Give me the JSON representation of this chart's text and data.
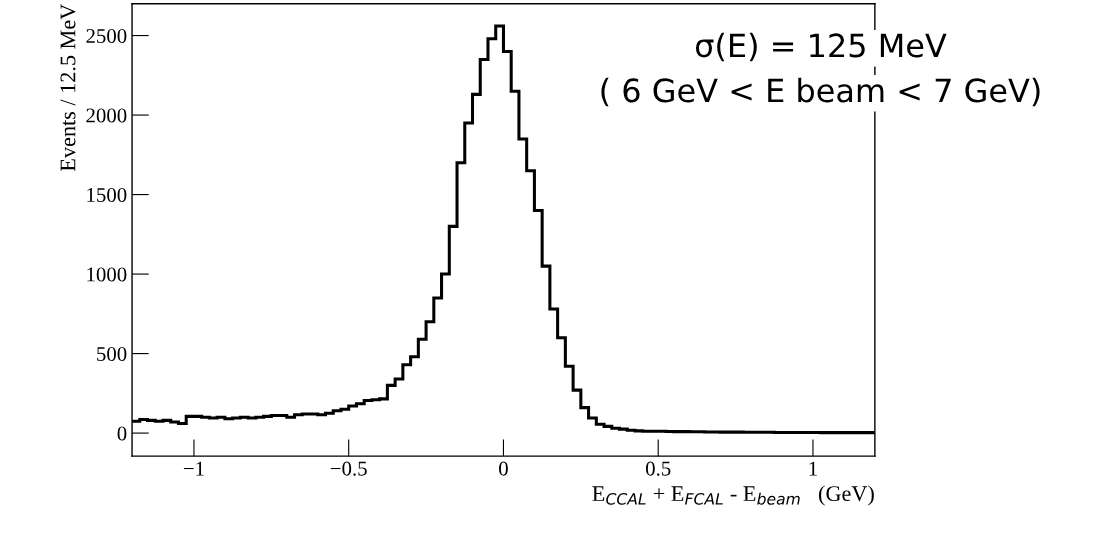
{
  "chart_data": {
    "type": "histogram",
    "xlabel": "E$_{CCAL}$ + E$_{FCAL}$ - E$_{beam}$   (GeV)",
    "ylabel": "Events / 12.5 MeV",
    "annotations": [
      "σ(E) = 125 MeV",
      "( 6 GeV < E beam < 7 GeV)"
    ],
    "color": "#000000",
    "bins": [
      -1.2,
      -1.175,
      -1.15,
      -1.125,
      -1.1,
      -1.075,
      -1.05,
      -1.025,
      -1.0,
      -0.975,
      -0.95,
      -0.925,
      -0.9,
      -0.875,
      -0.85,
      -0.825,
      -0.8,
      -0.775,
      -0.75,
      -0.725,
      -0.7,
      -0.675,
      -0.65,
      -0.625,
      -0.6,
      -0.575,
      -0.55,
      -0.525,
      -0.5,
      -0.475,
      -0.45,
      -0.425,
      -0.4,
      -0.375,
      -0.35,
      -0.325,
      -0.3,
      -0.275,
      -0.25,
      -0.225,
      -0.2,
      -0.175,
      -0.15,
      -0.125,
      -0.1,
      -0.075,
      -0.05,
      -0.025,
      0.0,
      0.025,
      0.05,
      0.075,
      0.1,
      0.125,
      0.15,
      0.175,
      0.2,
      0.225,
      0.25,
      0.275,
      0.3,
      0.325,
      0.35,
      0.375,
      0.4,
      0.425,
      0.45,
      0.475,
      0.5,
      0.525,
      0.55,
      0.575,
      0.6,
      0.625,
      0.65,
      0.675,
      0.7,
      0.725,
      0.75,
      0.775,
      0.8,
      0.825,
      0.85,
      0.875,
      0.9,
      0.925,
      0.95,
      0.975,
      1.0,
      1.025,
      1.05,
      1.075,
      1.1,
      1.125,
      1.15,
      1.175,
      1.2
    ],
    "values": [
      75,
      85,
      80,
      75,
      80,
      70,
      60,
      105,
      105,
      100,
      95,
      100,
      90,
      95,
      100,
      95,
      100,
      105,
      110,
      110,
      100,
      115,
      120,
      120,
      115,
      125,
      140,
      150,
      170,
      185,
      205,
      210,
      215,
      300,
      340,
      430,
      480,
      590,
      700,
      850,
      1000,
      1300,
      1700,
      1950,
      2130,
      2350,
      2480,
      2560,
      2400,
      2150,
      1850,
      1650,
      1400,
      1050,
      780,
      600,
      420,
      270,
      160,
      95,
      55,
      42,
      30,
      25,
      18,
      14,
      12,
      11,
      11,
      10,
      9,
      9,
      8,
      8,
      7,
      7,
      6,
      6,
      6,
      5,
      5,
      5,
      5,
      4,
      4,
      4,
      4,
      4,
      4,
      3,
      3,
      3,
      3,
      3,
      3,
      3
    ],
    "xlim": [
      -1.2,
      1.2
    ],
    "ylim": [
      -145,
      2700
    ],
    "xticks": [
      {
        "value": -1,
        "label": "−1"
      },
      {
        "value": -0.5,
        "label": "−0.5"
      },
      0,
      0.5,
      1
    ],
    "yticks": [
      0,
      500,
      1000,
      1500,
      2000,
      2500
    ],
    "grid": false,
    "legend": false
  }
}
